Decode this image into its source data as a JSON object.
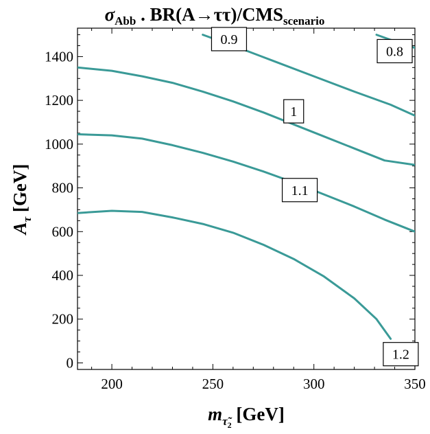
{
  "chart_data": {
    "type": "line",
    "subtype": "contour",
    "title_parts": {
      "sigma": "σ",
      "sigma_sub": "Abb",
      "mid": " . BR(A→ττ)/CMS",
      "end_sub": "scenario"
    },
    "xlabel_parts": {
      "base": "m",
      "sub": "τ̃",
      "subsub": "2",
      "unit": " [GeV]"
    },
    "ylabel_parts": {
      "base": "A",
      "sub": "τ",
      "unit": " [GeV]"
    },
    "xlim": [
      183,
      350
    ],
    "ylim": [
      -30,
      1530
    ],
    "x_ticks": [
      200,
      250,
      300,
      350
    ],
    "y_ticks": [
      0,
      200,
      400,
      600,
      800,
      1000,
      1200,
      1400
    ],
    "line_color": "#3a9a97",
    "frame_ticks": true,
    "grid": false,
    "legend": "none",
    "series": [
      {
        "label": "0.9",
        "label_x": 258,
        "label_y": 1480,
        "points": [
          [
            245,
            1500
          ],
          [
            260,
            1450
          ],
          [
            280,
            1380
          ],
          [
            300,
            1310
          ],
          [
            320,
            1240
          ],
          [
            338,
            1180
          ],
          [
            350,
            1130
          ]
        ]
      },
      {
        "label": "0.8",
        "label_x": 340,
        "label_y": 1425,
        "points": [
          [
            331,
            1500
          ],
          [
            340,
            1470
          ],
          [
            350,
            1440
          ]
        ]
      },
      {
        "label": "1",
        "label_x": 290,
        "label_y": 1150,
        "points": [
          [
            183,
            1350
          ],
          [
            200,
            1335
          ],
          [
            215,
            1310
          ],
          [
            230,
            1280
          ],
          [
            245,
            1240
          ],
          [
            260,
            1195
          ],
          [
            275,
            1145
          ],
          [
            290,
            1090
          ],
          [
            305,
            1035
          ],
          [
            320,
            980
          ],
          [
            335,
            925
          ],
          [
            350,
            905
          ]
        ]
      },
      {
        "label": "1.1",
        "label_x": 293,
        "label_y": 790,
        "points": [
          [
            183,
            1045
          ],
          [
            200,
            1040
          ],
          [
            215,
            1025
          ],
          [
            230,
            995
          ],
          [
            245,
            960
          ],
          [
            260,
            920
          ],
          [
            275,
            875
          ],
          [
            290,
            825
          ],
          [
            305,
            770
          ],
          [
            320,
            715
          ],
          [
            335,
            655
          ],
          [
            350,
            600
          ]
        ]
      },
      {
        "label": "1.2",
        "label_x": 343,
        "label_y": 40,
        "points": [
          [
            183,
            685
          ],
          [
            200,
            695
          ],
          [
            215,
            690
          ],
          [
            230,
            665
          ],
          [
            245,
            635
          ],
          [
            260,
            595
          ],
          [
            275,
            540
          ],
          [
            290,
            475
          ],
          [
            305,
            395
          ],
          [
            320,
            295
          ],
          [
            331,
            200
          ],
          [
            338,
            110
          ]
        ]
      }
    ]
  }
}
